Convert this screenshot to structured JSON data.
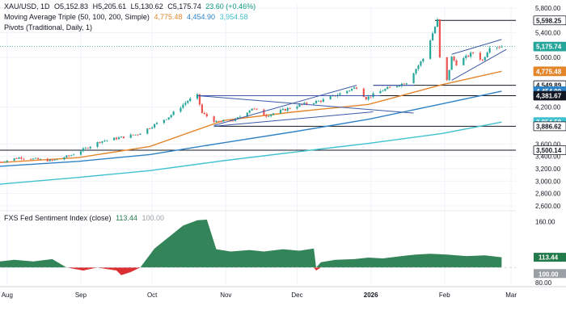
{
  "header": {
    "symbol": "XAU/USD, 1D",
    "open": "O5,152.83",
    "high": "H5,205.61",
    "low": "L5,130.62",
    "close": "C5,175.74",
    "change": "23.60 (+0.46%)",
    "ma_label": "Moving Average Triple (50, 100, 200, Simple)",
    "ma1": "4,775.48",
    "ma2": "4,454.90",
    "ma3": "3,954.58",
    "pivots_label": "Pivots (Traditional, Daily, 1)"
  },
  "colors": {
    "up": "#26a69a",
    "down": "#ef5350",
    "ma50": "#e3862b",
    "ma100": "#2f82c6",
    "ma200": "#3fc1cf",
    "pattern": "#3d5aa8",
    "sentiment": "#237a4b",
    "sentiment_neg": "#d8181c"
  },
  "chart_data": [
    {
      "type": "candlestick",
      "title": "XAU/USD, 1D",
      "price_axis_ticks": [
        "5,800.00",
        "5,400.00",
        "5,000.00",
        "4,200.00",
        "3,600.00",
        "3,400.00",
        "3,200.00",
        "3,000.00",
        "2,800.00",
        "2,600.00"
      ],
      "x_axis_ticks": [
        "Aug",
        "Sep",
        "Oct",
        "Nov",
        "Dec",
        "2026",
        "Feb",
        "Mar"
      ],
      "ylim": [
        2560,
        5850
      ],
      "x_range": [
        "2025-07-29",
        "2026-03-03"
      ],
      "price_path": [
        [
          "2025-07-29",
          3310
        ],
        [
          "2025-08-06",
          3380
        ],
        [
          "2025-08-20",
          3330
        ],
        [
          "2025-08-28",
          3420
        ],
        [
          "2025-09-09",
          3640
        ],
        [
          "2025-09-25",
          3760
        ],
        [
          "2025-10-08",
          4040
        ],
        [
          "2025-10-16",
          4300
        ],
        [
          "2025-10-20",
          4381.67
        ],
        [
          "2025-10-22",
          4100
        ],
        [
          "2025-10-28",
          3950
        ],
        [
          "2025-11-05",
          3990
        ],
        [
          "2025-11-12",
          4180
        ],
        [
          "2025-11-18",
          4060
        ],
        [
          "2025-12-01",
          4220
        ],
        [
          "2025-12-12",
          4310
        ],
        [
          "2025-12-26",
          4520
        ],
        [
          "2025-12-30",
          4340
        ],
        [
          "2026-01-06",
          4470
        ],
        [
          "2026-01-16",
          4600
        ],
        [
          "2026-01-23",
          4980
        ],
        [
          "2026-01-29",
          5598.25
        ],
        [
          "2026-01-30",
          4990
        ],
        [
          "2026-02-02",
          4620
        ],
        [
          "2026-02-04",
          5000
        ],
        [
          "2026-02-06",
          4900
        ],
        [
          "2026-02-13",
          5080
        ],
        [
          "2026-02-17",
          4950
        ],
        [
          "2026-02-20",
          5180
        ],
        [
          "2026-02-25",
          5175.74
        ]
      ],
      "series": [
        {
          "name": "50",
          "values": [
            [
              "2025-07-29",
              3300
            ],
            [
              "2025-08-31",
              3380
            ],
            [
              "2025-09-30",
              3560
            ],
            [
              "2025-10-31",
              3980
            ],
            [
              "2025-11-30",
              4120
            ],
            [
              "2025-12-31",
              4240
            ],
            [
              "2026-01-31",
              4560
            ],
            [
              "2026-02-25",
              4775.48
            ]
          ]
        },
        {
          "name": "100",
          "values": [
            [
              "2025-07-29",
              3240
            ],
            [
              "2025-08-31",
              3320
            ],
            [
              "2025-09-30",
              3430
            ],
            [
              "2025-10-31",
              3620
            ],
            [
              "2025-11-30",
              3800
            ],
            [
              "2025-12-31",
              4000
            ],
            [
              "2026-01-31",
              4250
            ],
            [
              "2026-02-25",
              4454.9
            ]
          ]
        },
        {
          "name": "200",
          "values": [
            [
              "2025-07-29",
              2950
            ],
            [
              "2025-08-31",
              3060
            ],
            [
              "2025-09-30",
              3170
            ],
            [
              "2025-10-31",
              3330
            ],
            [
              "2025-11-30",
              3470
            ],
            [
              "2025-12-31",
              3610
            ],
            [
              "2026-01-31",
              3770
            ],
            [
              "2026-02-25",
              3954.58
            ]
          ]
        }
      ],
      "horizontal_levels": [
        "5,598.25",
        "4,549.89",
        "4,381.67",
        "3,886.62",
        "3,500.14"
      ],
      "pattern_lines": [
        [
          [
            "2025-10-20",
            4381.67
          ],
          [
            "2026-01-19",
            4100
          ]
        ],
        [
          [
            "2025-10-27",
            3900
          ],
          [
            "2025-12-26",
            4549.89
          ]
        ],
        [
          [
            "2025-10-20",
            4381.67
          ],
          [
            "2026-01-05",
            4381.67
          ]
        ],
        [
          [
            "2025-10-27",
            3886.62
          ],
          [
            "2026-01-02",
            4120
          ]
        ],
        [
          [
            "2026-01-02",
            4549.89
          ],
          [
            "2026-01-19",
            4549.89
          ]
        ],
        [
          [
            "2026-02-04",
            5050
          ],
          [
            "2026-02-25",
            5290
          ]
        ],
        [
          [
            "2026-02-04",
            4630
          ],
          [
            "2026-02-27",
            5130
          ]
        ]
      ],
      "price_labels": [
        "5,598.25",
        "5,175.74",
        "4,775.48",
        "4,549.89",
        "4,454.90",
        "4,381.67",
        "3,954.58",
        "3,886.62",
        "3,500.14"
      ]
    },
    {
      "type": "area",
      "title": "FXS Fed Sentiment Index (close)",
      "value_label": "113.44",
      "baseline_label": "100.00",
      "y_axis_ticks": [
        "160.00",
        "80.00"
      ],
      "ylim": [
        78,
        165
      ],
      "baseline": 100,
      "values": [
        [
          "2025-07-29",
          108
        ],
        [
          "2025-08-04",
          110
        ],
        [
          "2025-08-12",
          108
        ],
        [
          "2025-08-20",
          111
        ],
        [
          "2025-08-26",
          100
        ],
        [
          "2025-09-02",
          96
        ],
        [
          "2025-09-08",
          100
        ],
        [
          "2025-09-16",
          96
        ],
        [
          "2025-09-18",
          90
        ],
        [
          "2025-09-22",
          94
        ],
        [
          "2025-09-26",
          100
        ],
        [
          "2025-10-02",
          125
        ],
        [
          "2025-10-08",
          140
        ],
        [
          "2025-10-14",
          155
        ],
        [
          "2025-10-20",
          162
        ],
        [
          "2025-10-24",
          163
        ],
        [
          "2025-10-28",
          124
        ],
        [
          "2025-11-03",
          121
        ],
        [
          "2025-11-11",
          123
        ],
        [
          "2025-11-17",
          121
        ],
        [
          "2025-11-25",
          124
        ],
        [
          "2025-12-02",
          122
        ],
        [
          "2025-12-08",
          125
        ],
        [
          "2025-12-09",
          96
        ],
        [
          "2025-12-11",
          107
        ],
        [
          "2025-12-17",
          110
        ],
        [
          "2025-12-25",
          111
        ],
        [
          "2025-12-31",
          113
        ],
        [
          "2026-01-06",
          112
        ],
        [
          "2026-01-14",
          115
        ],
        [
          "2026-01-20",
          117
        ],
        [
          "2026-01-26",
          118
        ],
        [
          "2026-02-02",
          117
        ],
        [
          "2026-02-10",
          115
        ],
        [
          "2026-02-18",
          116
        ],
        [
          "2026-02-25",
          113.44
        ]
      ]
    }
  ]
}
